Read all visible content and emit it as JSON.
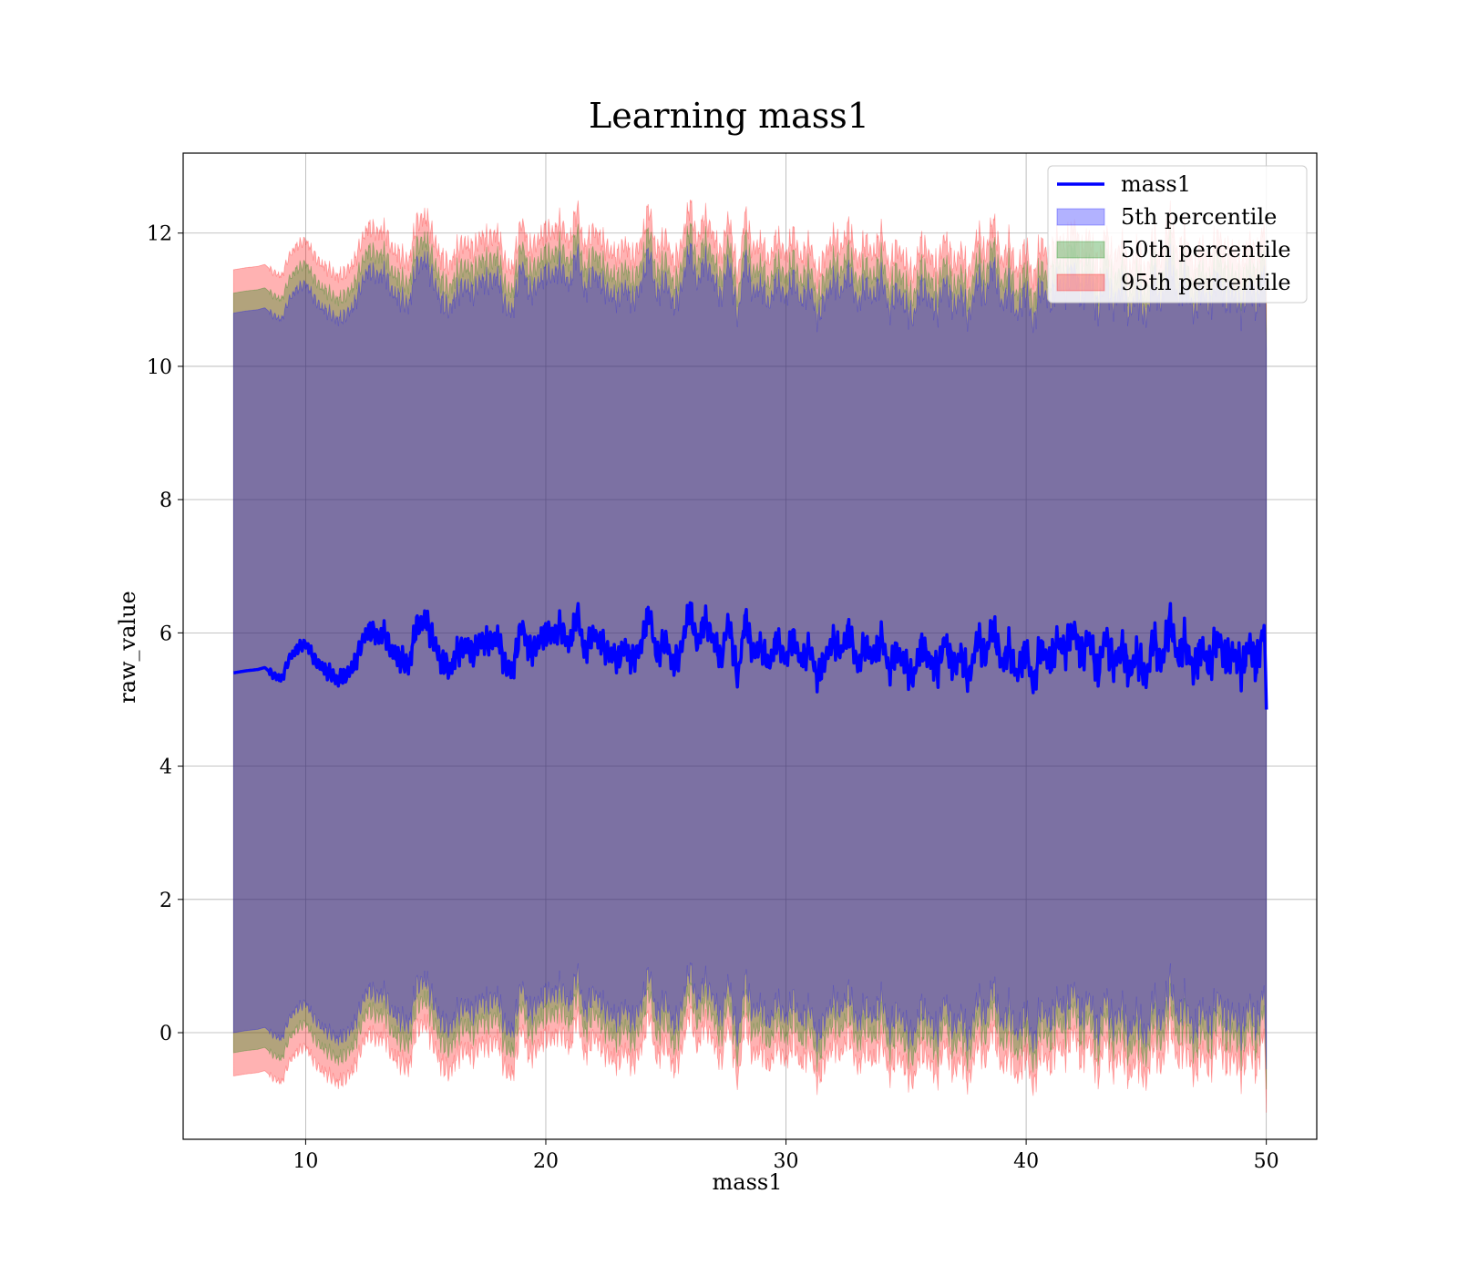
{
  "chart_data": {
    "type": "line",
    "title": "Learning mass1",
    "xlabel": "mass1",
    "ylabel": "raw_value",
    "xlim": [
      4.9,
      52.1
    ],
    "ylim": [
      -1.6,
      13.2
    ],
    "x_range": [
      7.0,
      50.0
    ],
    "xticks": [
      10,
      20,
      30,
      40,
      50
    ],
    "yticks": [
      0,
      2,
      4,
      6,
      8,
      10,
      12
    ],
    "grid": true,
    "legend_position": "top-right",
    "series": [
      {
        "name": "mass1",
        "kind": "line",
        "color": "#0000ff"
      },
      {
        "name": "5th percentile",
        "kind": "band",
        "color": "#0000ff",
        "half_width": 5.4
      },
      {
        "name": "50th percentile",
        "kind": "band",
        "color": "#008000",
        "half_width": 5.7
      },
      {
        "name": "95th percentile",
        "kind": "band",
        "color": "#ff0000",
        "half_width": 6.05
      }
    ],
    "mass1_trace": {
      "x": [
        7.0,
        7.5,
        8.0,
        8.3,
        8.6,
        9.0,
        9.3,
        9.6,
        10.0,
        10.3,
        10.6,
        11.0,
        11.3,
        11.6,
        12.0,
        12.3,
        12.6,
        13.0,
        13.3,
        13.6,
        14.0,
        14.3,
        14.6,
        15.0,
        15.3,
        15.6,
        16.0,
        16.3,
        16.6,
        17.0,
        17.3,
        17.6,
        18.0,
        18.3,
        18.6,
        19.0,
        19.3,
        19.6,
        20.0,
        20.3,
        20.6,
        21.0,
        21.3,
        21.6,
        22.0,
        22.3,
        22.6,
        23.0,
        23.3,
        23.6,
        24.0,
        24.3,
        24.6,
        25.0,
        25.3,
        25.6,
        26.0,
        26.3,
        26.6,
        27.0,
        27.3,
        27.6,
        28.0,
        28.3,
        28.6,
        29.0,
        29.3,
        29.6,
        30.0,
        30.3,
        30.6,
        31.0,
        31.3,
        31.6,
        32.0,
        32.3,
        32.6,
        33.0,
        33.3,
        33.6,
        34.0,
        34.3,
        34.6,
        35.0,
        35.3,
        35.6,
        36.0,
        36.3,
        36.6,
        37.0,
        37.3,
        37.6,
        38.0,
        38.3,
        38.6,
        39.0,
        39.3,
        39.6,
        40.0,
        40.3,
        40.6,
        41.0,
        41.3,
        41.6,
        42.0,
        42.3,
        42.6,
        43.0,
        43.3,
        43.6,
        44.0,
        44.3,
        44.6,
        45.0,
        45.3,
        45.6,
        46.0,
        46.3,
        46.6,
        47.0,
        47.3,
        47.6,
        48.0,
        48.3,
        48.6,
        49.0,
        49.3,
        49.6,
        49.9,
        50.0
      ],
      "y": [
        5.4,
        5.43,
        5.45,
        5.48,
        5.38,
        5.3,
        5.6,
        5.75,
        5.85,
        5.65,
        5.5,
        5.4,
        5.3,
        5.35,
        5.5,
        5.8,
        6.05,
        5.95,
        6.0,
        5.7,
        5.6,
        5.5,
        6.1,
        6.2,
        5.9,
        5.6,
        5.45,
        5.7,
        5.8,
        5.7,
        5.9,
        5.85,
        5.95,
        5.5,
        5.4,
        6.15,
        5.7,
        5.8,
        6.0,
        5.95,
        6.1,
        5.8,
        6.35,
        5.7,
        6.0,
        5.85,
        5.7,
        5.6,
        5.8,
        5.55,
        5.85,
        6.35,
        5.65,
        5.9,
        5.5,
        5.7,
        6.4,
        5.8,
        6.2,
        5.9,
        5.6,
        6.2,
        5.3,
        6.25,
        5.7,
        5.8,
        5.5,
        5.9,
        5.6,
        5.95,
        5.55,
        5.8,
        5.3,
        5.6,
        5.9,
        5.7,
        6.05,
        5.5,
        5.85,
        5.6,
        5.95,
        5.4,
        5.75,
        5.5,
        5.3,
        5.8,
        5.6,
        5.4,
        5.9,
        5.45,
        5.7,
        5.3,
        5.95,
        5.6,
        6.15,
        5.5,
        5.8,
        5.35,
        5.75,
        5.2,
        5.8,
        5.55,
        5.9,
        5.7,
        6.1,
        5.6,
        5.95,
        5.4,
        6.0,
        5.5,
        5.8,
        5.35,
        5.7,
        5.3,
        5.95,
        5.5,
        6.2,
        5.6,
        5.9,
        5.4,
        5.8,
        5.5,
        5.95,
        5.6,
        5.7,
        5.45,
        5.85,
        5.5,
        6.1,
        5.1
      ]
    }
  }
}
